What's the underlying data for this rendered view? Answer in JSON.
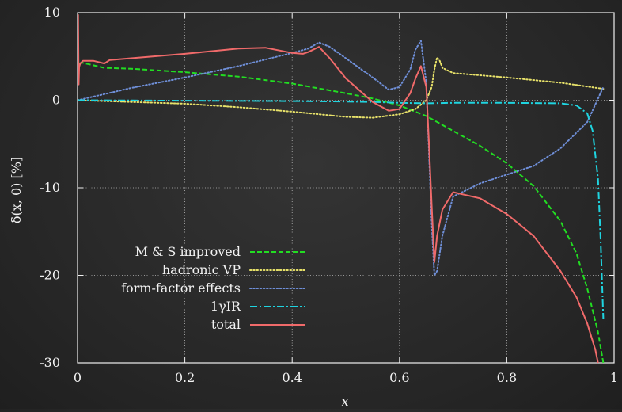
{
  "chart_data": {
    "type": "line",
    "xlabel": "x",
    "ylabel": "δ(x, 0) [%]",
    "xlim": [
      0,
      1
    ],
    "ylim": [
      -30,
      10
    ],
    "xticks": [
      0,
      0.2,
      0.4,
      0.6,
      0.8,
      1
    ],
    "xtick_labels": [
      "0",
      "0.2",
      "0.4",
      "0.6",
      "0.8",
      "1"
    ],
    "yticks": [
      -30,
      -20,
      -10,
      0,
      10
    ],
    "ytick_labels": [
      "-30",
      "-20",
      "-10",
      "0",
      "10"
    ],
    "grid": true,
    "legend_position": "bottom-left",
    "series": [
      {
        "name": "M & S improved",
        "color": "#22dd22",
        "dash": "dashed",
        "x": [
          0.003,
          0.008,
          0.05,
          0.1,
          0.2,
          0.3,
          0.4,
          0.5,
          0.55,
          0.6,
          0.65,
          0.7,
          0.75,
          0.8,
          0.85,
          0.9,
          0.93,
          0.95,
          0.97,
          0.98
        ],
        "y": [
          4.2,
          4.3,
          3.7,
          3.6,
          3.2,
          2.7,
          1.9,
          0.8,
          0.2,
          -0.6,
          -1.8,
          -3.5,
          -5.2,
          -7.2,
          -9.8,
          -13.8,
          -17.5,
          -21.5,
          -26.5,
          -30
        ]
      },
      {
        "name": "hadronic VP",
        "color": "#e8e26a",
        "dash": "dotted",
        "x": [
          0,
          0.1,
          0.2,
          0.3,
          0.4,
          0.5,
          0.55,
          0.6,
          0.63,
          0.65,
          0.66,
          0.665,
          0.67,
          0.675,
          0.68,
          0.7,
          0.8,
          0.9,
          0.98
        ],
        "y": [
          0,
          -0.2,
          -0.4,
          -0.8,
          -1.3,
          -1.9,
          -2.0,
          -1.6,
          -1.0,
          0.0,
          1.5,
          3.5,
          4.9,
          4.5,
          3.7,
          3.1,
          2.6,
          2.0,
          1.3
        ]
      },
      {
        "name": "form-factor effects",
        "color": "#6f8fd8",
        "dash": "dotted",
        "x": [
          0,
          0.05,
          0.1,
          0.2,
          0.3,
          0.4,
          0.43,
          0.45,
          0.47,
          0.5,
          0.55,
          0.58,
          0.6,
          0.62,
          0.63,
          0.64,
          0.65,
          0.66,
          0.665,
          0.67,
          0.68,
          0.7,
          0.75,
          0.8,
          0.85,
          0.9,
          0.95,
          0.98
        ],
        "y": [
          0,
          0.7,
          1.4,
          2.6,
          3.9,
          5.4,
          5.9,
          6.6,
          6.1,
          4.8,
          2.6,
          1.2,
          1.5,
          3.5,
          5.8,
          6.8,
          2.0,
          -14.0,
          -20.0,
          -19.5,
          -15.5,
          -11.0,
          -9.5,
          -8.5,
          -7.5,
          -5.5,
          -2.5,
          1.5
        ]
      },
      {
        "name": "1γIR",
        "color": "#1fd4e0",
        "dash": "dashdot",
        "x": [
          0,
          0.2,
          0.4,
          0.5,
          0.55,
          0.6,
          0.65,
          0.7,
          0.8,
          0.9,
          0.93,
          0.95,
          0.96,
          0.97,
          0.975,
          0.98
        ],
        "y": [
          0,
          -0.05,
          -0.1,
          -0.15,
          -0.2,
          -0.3,
          -0.35,
          -0.3,
          -0.3,
          -0.35,
          -0.6,
          -1.5,
          -3.5,
          -9,
          -16,
          -25
        ]
      },
      {
        "name": "total",
        "color": "#f06a6a",
        "dash": "solid",
        "x": [
          0.001,
          0.002,
          0.003,
          0.005,
          0.01,
          0.03,
          0.05,
          0.06,
          0.1,
          0.2,
          0.3,
          0.35,
          0.4,
          0.42,
          0.43,
          0.45,
          0.47,
          0.5,
          0.55,
          0.58,
          0.6,
          0.62,
          0.63,
          0.64,
          0.65,
          0.655,
          0.66,
          0.665,
          0.67,
          0.68,
          0.7,
          0.75,
          0.8,
          0.85,
          0.9,
          0.93,
          0.95,
          0.965,
          0.97
        ],
        "y": [
          9.8,
          1.8,
          3.8,
          4.2,
          4.5,
          4.5,
          4.2,
          4.6,
          4.8,
          5.3,
          5.9,
          6.0,
          5.4,
          5.3,
          5.5,
          6.1,
          4.8,
          2.5,
          -0.2,
          -1.2,
          -1.0,
          0.8,
          2.5,
          3.9,
          1.5,
          -5.0,
          -12.0,
          -18.5,
          -15.5,
          -12.5,
          -10.5,
          -11.2,
          -13.0,
          -15.5,
          -19.5,
          -22.5,
          -25.5,
          -28.5,
          -30.0
        ]
      }
    ]
  }
}
